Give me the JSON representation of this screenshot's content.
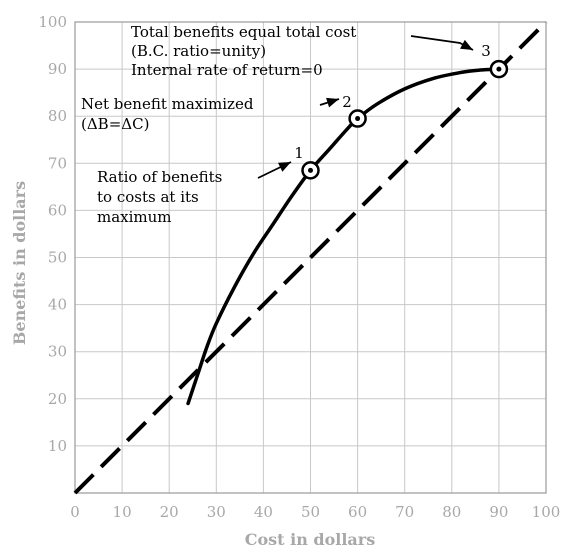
{
  "chart_data": {
    "type": "line",
    "title": "",
    "xlabel": "Cost in dollars",
    "ylabel": "Benefits in dollars",
    "xlim": [
      0,
      100
    ],
    "ylim": [
      0,
      100
    ],
    "xticks": [
      0,
      10,
      20,
      30,
      40,
      50,
      60,
      70,
      80,
      90,
      100
    ],
    "yticks": [
      10,
      20,
      30,
      40,
      50,
      60,
      70,
      80,
      90,
      100
    ],
    "grid": true,
    "colors": {
      "curve": "#000000",
      "grid": "#c8c8c8",
      "axis_text": "#a8a8a8"
    },
    "series": [
      {
        "style": "dashed",
        "x": [
          0,
          100
        ],
        "y": [
          0,
          100
        ]
      },
      {
        "style": "solid",
        "x": [
          24,
          26,
          28,
          30,
          34,
          38,
          42,
          46,
          50,
          54,
          58,
          60,
          64,
          70,
          76,
          82,
          86,
          90
        ],
        "y": [
          19,
          25,
          31,
          36,
          44,
          51,
          57,
          63,
          68.5,
          73,
          77.5,
          79.5,
          82.5,
          85.8,
          88,
          89.3,
          89.8,
          90
        ]
      }
    ],
    "points": [
      {
        "label": "1",
        "x": 50,
        "y": 68.5
      },
      {
        "label": "2",
        "x": 60,
        "y": 79.5
      },
      {
        "label": "3",
        "x": 90,
        "y": 90
      }
    ],
    "annotations": [
      {
        "target": "3",
        "lines": [
          "Total benefits equal total cost",
          "(B.C. ratio=unity)",
          "Internal rate of return=0"
        ]
      },
      {
        "target": "2",
        "lines": [
          "Net benefit maximized",
          "(ΔB=ΔC)"
        ]
      },
      {
        "target": "1",
        "lines": [
          "Ratio of benefits",
          "to costs at its",
          "maximum"
        ]
      }
    ]
  }
}
